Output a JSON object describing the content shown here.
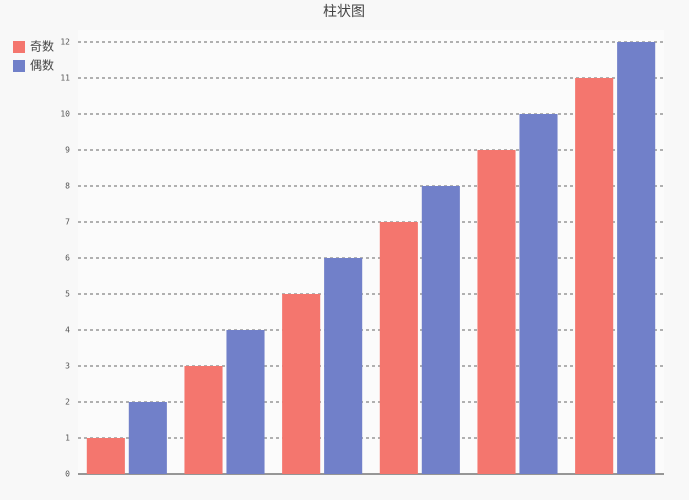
{
  "chart_data": {
    "type": "bar",
    "title": "柱状图",
    "categories": [
      null,
      null,
      null,
      null,
      null,
      null
    ],
    "series": [
      {
        "name": "奇数",
        "color": "#f4766e",
        "values": [
          1,
          3,
          5,
          7,
          9,
          11
        ]
      },
      {
        "name": "偶数",
        "color": "#7180c9",
        "values": [
          2,
          4,
          6,
          8,
          10,
          12
        ]
      }
    ],
    "ylim": [
      0,
      12
    ],
    "yticks": [
      0,
      1,
      2,
      3,
      4,
      5,
      6,
      7,
      8,
      9,
      10,
      11,
      12
    ],
    "grid": true,
    "legend": "top-left"
  }
}
